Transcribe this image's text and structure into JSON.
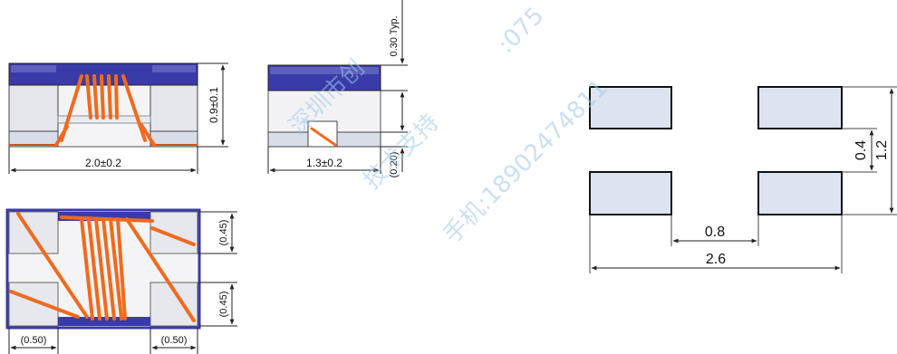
{
  "colors": {
    "body_blue": "#3a3aa8",
    "coil_orange": "#f06a1e",
    "terminal_fill": "#e7e9ee",
    "pad_fill": "#dde3f0",
    "line": "#222222",
    "watermark": "#9ec8ec"
  },
  "front_view": {
    "width_label": "2.0±0.2",
    "height_label": "0.9±0.1"
  },
  "side_view": {
    "width_label": "1.3±0.2",
    "top_label": "0.30 Typ.",
    "bottom_label": "(0.20)"
  },
  "top_view": {
    "upper_label": "(0.45)",
    "lower_label": "(0.45)",
    "left_label": "(0.50)",
    "right_label": "(0.50)"
  },
  "land_pattern": {
    "gap_label": "0.8",
    "total_width_label": "2.6",
    "pad_gap_label": "0.4",
    "total_height_label": "1.2"
  },
  "watermark": {
    "line1": "深圳市创",
    "line2": "技术支持",
    "line3": ":075",
    "line4": "手机:18902474811"
  }
}
